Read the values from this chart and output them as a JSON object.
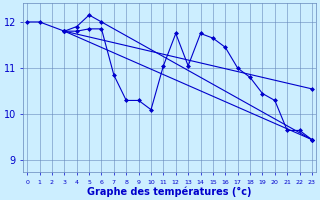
{
  "background_color": "#cceeff",
  "grid_color": "#6688bb",
  "line_color": "#0000cc",
  "title": "Graphe des températures (°c)",
  "yticks": [
    9,
    10,
    11,
    12
  ],
  "xticks": [
    0,
    1,
    2,
    3,
    4,
    5,
    6,
    7,
    8,
    9,
    10,
    11,
    12,
    13,
    14,
    15,
    16,
    17,
    18,
    19,
    20,
    21,
    22,
    23
  ],
  "xlim": [
    -0.3,
    23.3
  ],
  "ylim": [
    8.75,
    12.4
  ],
  "figsize": [
    3.2,
    2.0
  ],
  "dpi": 100,
  "series": [
    {
      "x": [
        0,
        1,
        3,
        4,
        5,
        6,
        7,
        8,
        9,
        10,
        11,
        12,
        13,
        14,
        15,
        16,
        17,
        18,
        19,
        20,
        21,
        22,
        23
      ],
      "y": [
        12.0,
        12.0,
        11.8,
        11.8,
        11.85,
        11.85,
        10.85,
        10.3,
        10.3,
        10.1,
        11.05,
        11.75,
        11.05,
        11.75,
        11.65,
        11.45,
        11.0,
        10.8,
        10.45,
        10.3,
        9.65,
        9.65,
        9.45
      ]
    },
    {
      "x": [
        3,
        4,
        5,
        6,
        23
      ],
      "y": [
        11.8,
        11.9,
        12.15,
        12.0,
        9.45
      ]
    },
    {
      "x": [
        3,
        23
      ],
      "y": [
        11.8,
        10.55
      ]
    },
    {
      "x": [
        3,
        23
      ],
      "y": [
        11.8,
        9.45
      ]
    }
  ],
  "xlabel_fontsize": 7,
  "xtick_fontsize": 4.5,
  "ytick_fontsize": 7,
  "marker": "D",
  "markersize": 2,
  "linewidth": 0.8
}
